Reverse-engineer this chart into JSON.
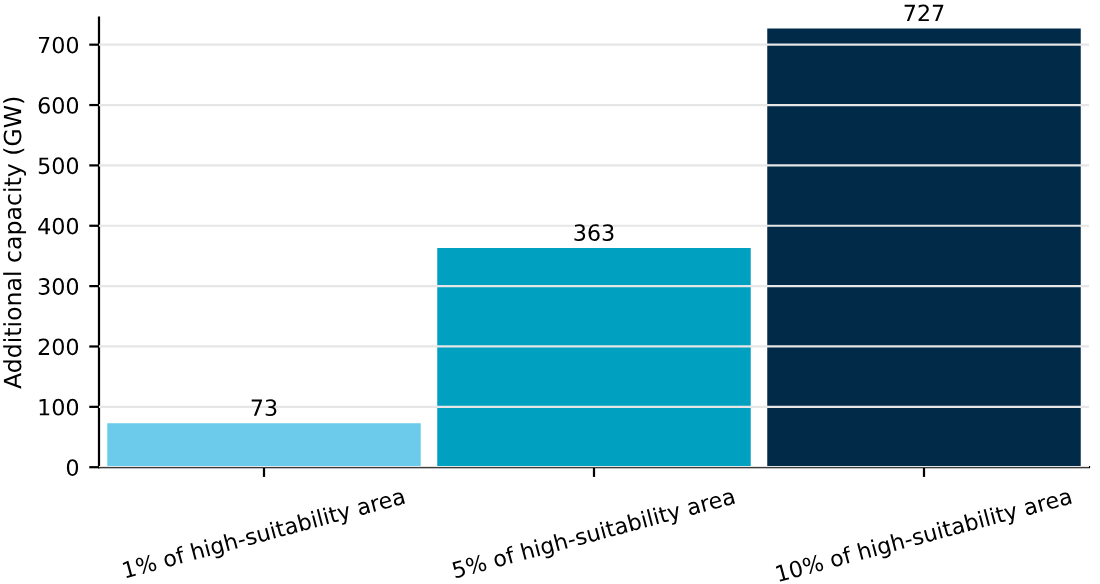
{
  "chart_data": {
    "type": "bar",
    "ylabel": "Additional capacity (GW)",
    "categories": [
      "1% of high-suitability area",
      "5% of high-suitability area",
      "10% of high-suitability area"
    ],
    "values": [
      73,
      363,
      727
    ],
    "colors": [
      "#6ccbea",
      "#00a0c0",
      "#002a48"
    ],
    "ylim": [
      0,
      745
    ],
    "yticks": [
      0,
      100,
      200,
      300,
      400,
      500,
      600,
      700
    ],
    "grid": "y",
    "data_labels": true
  }
}
